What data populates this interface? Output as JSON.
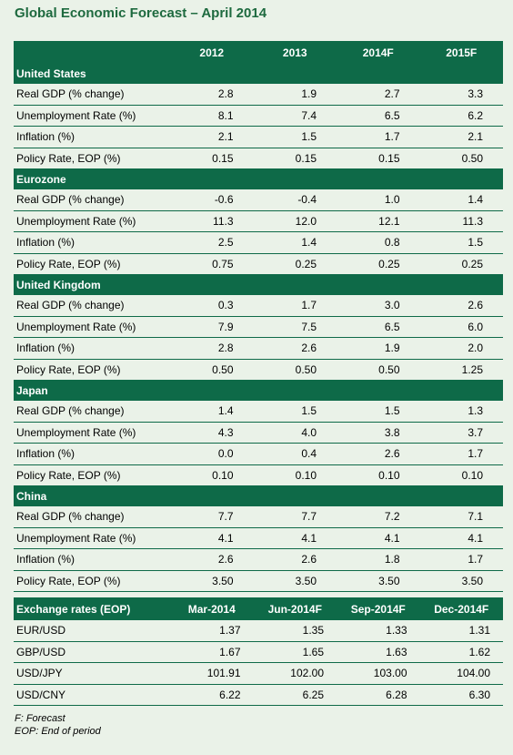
{
  "title": "Global Economic Forecast – April 2014",
  "forecast": {
    "columns": [
      "2012",
      "2013",
      "2014F",
      "2015F"
    ],
    "sections": [
      {
        "name": "United States",
        "rows": [
          {
            "label": "Real GDP (% change)",
            "values": [
              "2.8",
              "1.9",
              "2.7",
              "3.3"
            ]
          },
          {
            "label": "Unemployment Rate (%)",
            "values": [
              "8.1",
              "7.4",
              "6.5",
              "6.2"
            ]
          },
          {
            "label": "Inflation (%)",
            "values": [
              "2.1",
              "1.5",
              "1.7",
              "2.1"
            ]
          },
          {
            "label": "Policy Rate, EOP (%)",
            "values": [
              "0.15",
              "0.15",
              "0.15",
              "0.50"
            ]
          }
        ]
      },
      {
        "name": "Eurozone",
        "rows": [
          {
            "label": "Real GDP (% change)",
            "values": [
              "-0.6",
              "-0.4",
              "1.0",
              "1.4"
            ]
          },
          {
            "label": "Unemployment Rate (%)",
            "values": [
              "11.3",
              "12.0",
              "12.1",
              "11.3"
            ]
          },
          {
            "label": "Inflation (%)",
            "values": [
              "2.5",
              "1.4",
              "0.8",
              "1.5"
            ]
          },
          {
            "label": "Policy Rate, EOP (%)",
            "values": [
              "0.75",
              "0.25",
              "0.25",
              "0.25"
            ]
          }
        ]
      },
      {
        "name": "United Kingdom",
        "rows": [
          {
            "label": "Real GDP (% change)",
            "values": [
              "0.3",
              "1.7",
              "3.0",
              "2.6"
            ]
          },
          {
            "label": "Unemployment Rate (%)",
            "values": [
              "7.9",
              "7.5",
              "6.5",
              "6.0"
            ]
          },
          {
            "label": "Inflation (%)",
            "values": [
              "2.8",
              "2.6",
              "1.9",
              "2.0"
            ]
          },
          {
            "label": "Policy Rate, EOP (%)",
            "values": [
              "0.50",
              "0.50",
              "0.50",
              "1.25"
            ]
          }
        ]
      },
      {
        "name": "Japan",
        "rows": [
          {
            "label": "Real GDP (% change)",
            "values": [
              "1.4",
              "1.5",
              "1.5",
              "1.3"
            ]
          },
          {
            "label": "Unemployment Rate (%)",
            "values": [
              "4.3",
              "4.0",
              "3.8",
              "3.7"
            ]
          },
          {
            "label": "Inflation (%)",
            "values": [
              "0.0",
              "0.4",
              "2.6",
              "1.7"
            ]
          },
          {
            "label": "Policy Rate, EOP (%)",
            "values": [
              "0.10",
              "0.10",
              "0.10",
              "0.10"
            ]
          }
        ]
      },
      {
        "name": "China",
        "rows": [
          {
            "label": "Real GDP (% change)",
            "values": [
              "7.7",
              "7.7",
              "7.2",
              "7.1"
            ]
          },
          {
            "label": "Unemployment Rate (%)",
            "values": [
              "4.1",
              "4.1",
              "4.1",
              "4.1"
            ]
          },
          {
            "label": "Inflation (%)",
            "values": [
              "2.6",
              "2.6",
              "1.8",
              "1.7"
            ]
          },
          {
            "label": "Policy Rate, EOP (%)",
            "values": [
              "3.50",
              "3.50",
              "3.50",
              "3.50"
            ]
          }
        ]
      }
    ]
  },
  "exchange": {
    "header": "Exchange rates (EOP)",
    "columns": [
      "Mar-2014",
      "Jun-2014F",
      "Sep-2014F",
      "Dec-2014F"
    ],
    "rows": [
      {
        "label": "EUR/USD",
        "values": [
          "1.37",
          "1.35",
          "1.33",
          "1.31"
        ]
      },
      {
        "label": "GBP/USD",
        "values": [
          "1.67",
          "1.65",
          "1.63",
          "1.62"
        ]
      },
      {
        "label": "USD/JPY",
        "values": [
          "101.91",
          "102.00",
          "103.00",
          "104.00"
        ]
      },
      {
        "label": "USD/CNY",
        "values": [
          "6.22",
          "6.25",
          "6.28",
          "6.30"
        ]
      }
    ]
  },
  "footnotes": [
    "F: Forecast",
    "EOP: End of period"
  ],
  "colors": {
    "header_green": "#0e6a48",
    "title_green": "#1e6a3f",
    "background": "#eaf2e8"
  }
}
